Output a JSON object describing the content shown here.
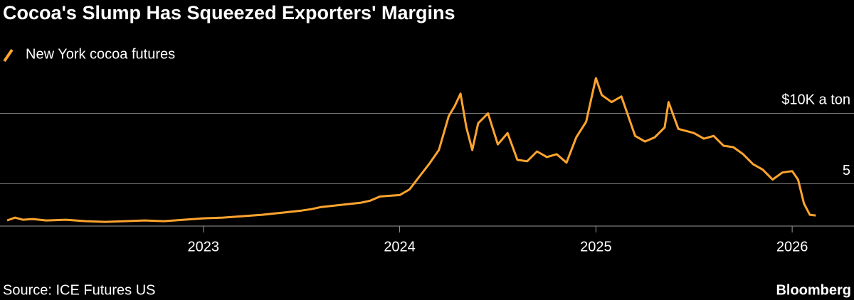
{
  "chart_data": {
    "type": "line",
    "title": "Cocoa's Slump Has Squeezed Exporters' Margins",
    "source": "Source: ICE Futures US",
    "brand": "Bloomberg",
    "x": [
      2022.0,
      2022.04,
      2022.08,
      2022.13,
      2022.2,
      2022.3,
      2022.4,
      2022.5,
      2022.6,
      2022.7,
      2022.8,
      2022.9,
      2023.0,
      2023.1,
      2023.2,
      2023.3,
      2023.4,
      2023.5,
      2023.55,
      2023.6,
      2023.7,
      2023.8,
      2023.85,
      2023.9,
      2024.0,
      2024.05,
      2024.1,
      2024.15,
      2024.2,
      2024.25,
      2024.28,
      2024.31,
      2024.34,
      2024.37,
      2024.4,
      2024.45,
      2024.5,
      2024.55,
      2024.6,
      2024.65,
      2024.7,
      2024.75,
      2024.8,
      2024.85,
      2024.9,
      2024.95,
      2025.0,
      2025.03,
      2025.08,
      2025.13,
      2025.2,
      2025.25,
      2025.3,
      2025.35,
      2025.37,
      2025.42,
      2025.5,
      2025.55,
      2025.6,
      2025.65,
      2025.7,
      2025.75,
      2025.8,
      2025.85,
      2025.9,
      2025.95,
      2026.0,
      2026.03,
      2026.06,
      2026.09,
      2026.12
    ],
    "series": [
      {
        "name": "New York cocoa futures",
        "color": "#ffa42e",
        "values": [
          2.4,
          2.6,
          2.45,
          2.5,
          2.4,
          2.45,
          2.35,
          2.3,
          2.35,
          2.4,
          2.35,
          2.45,
          2.55,
          2.6,
          2.7,
          2.8,
          2.95,
          3.1,
          3.2,
          3.35,
          3.5,
          3.65,
          3.8,
          4.1,
          4.2,
          4.6,
          5.5,
          6.4,
          7.4,
          9.8,
          10.5,
          11.4,
          9.0,
          7.4,
          9.3,
          10.0,
          7.8,
          8.6,
          6.7,
          6.6,
          7.3,
          6.9,
          7.1,
          6.5,
          8.3,
          9.4,
          12.5,
          11.3,
          10.8,
          11.2,
          8.4,
          8.0,
          8.3,
          9.0,
          10.8,
          8.9,
          8.6,
          8.2,
          8.4,
          7.7,
          7.6,
          7.1,
          6.4,
          6.0,
          5.3,
          5.8,
          5.9,
          5.3,
          3.6,
          2.8,
          2.75
        ]
      }
    ],
    "xlim": [
      2022.0,
      2026.315
    ],
    "xticks": [
      2023,
      2024,
      2025,
      2026
    ],
    "ylim": [
      2,
      13
    ],
    "yticks": [
      5,
      {
        "value": 10,
        "label": "$10K a ton"
      }
    ],
    "grid": true
  }
}
